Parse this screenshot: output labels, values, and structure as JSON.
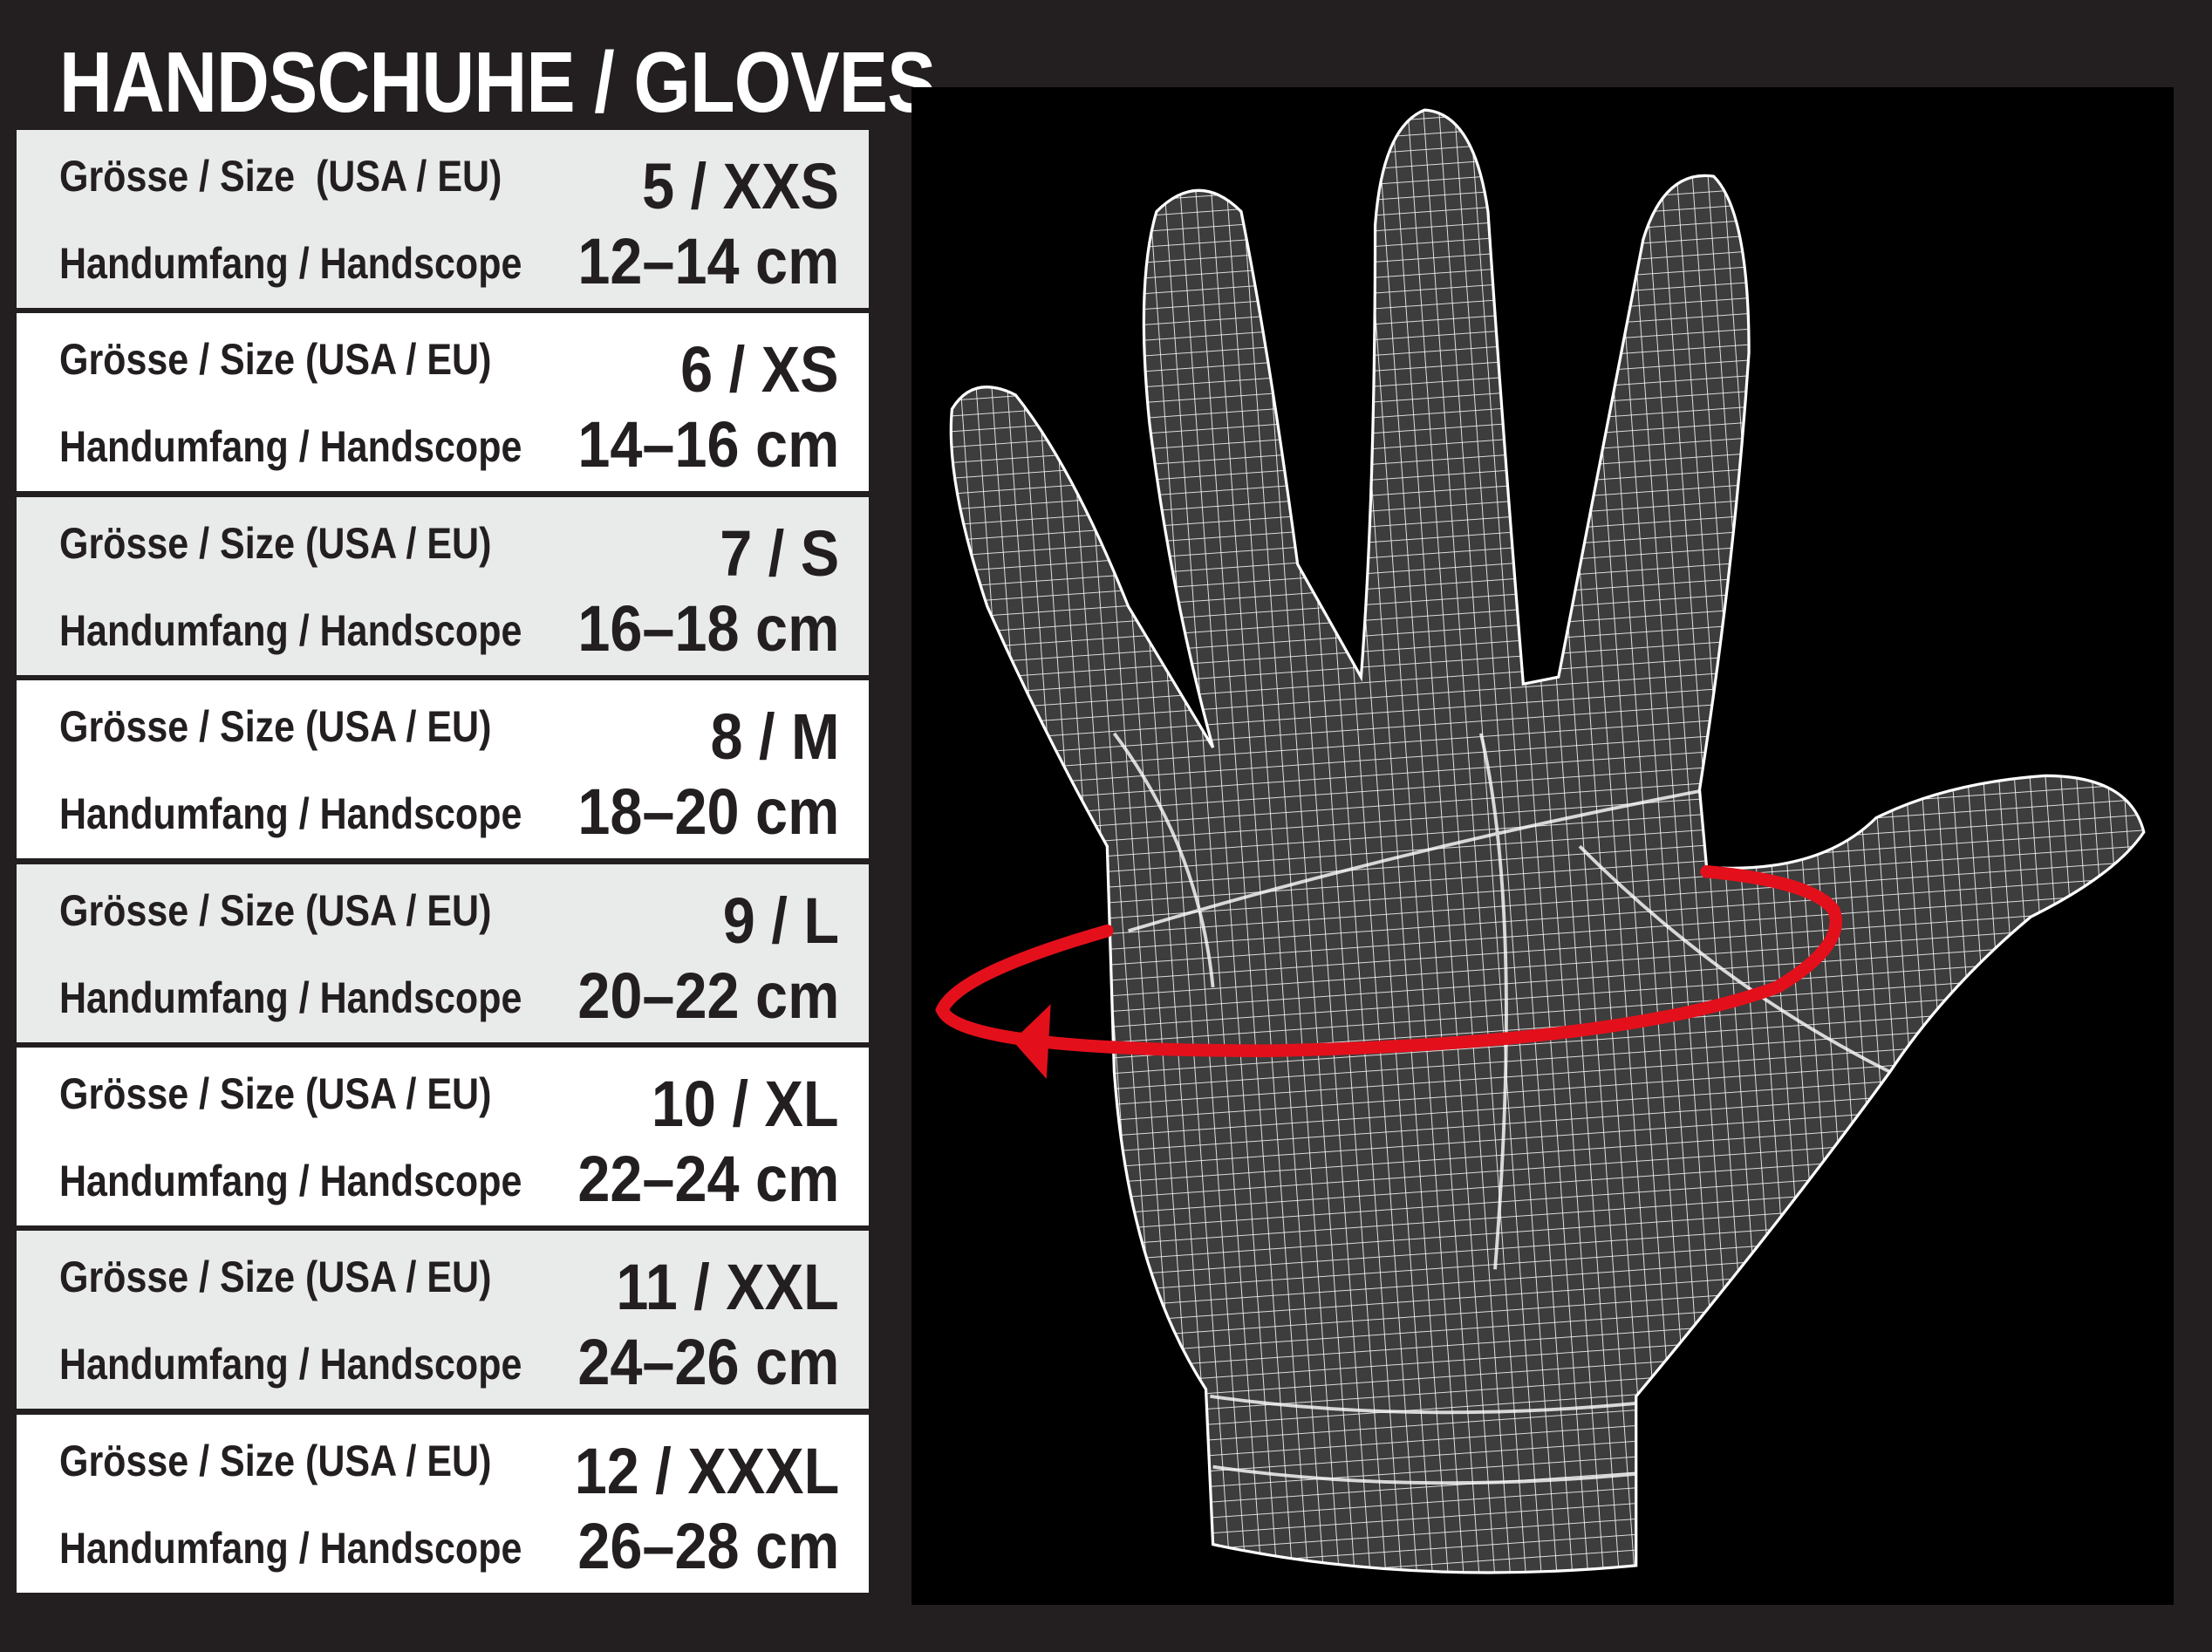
{
  "title": "HANDSCHUHE / GLOVES",
  "rows": [
    {
      "size_label": "Grösse / Size  (USA / EU)",
      "size": "5 / XXS",
      "range_label": "Handumfang / Handscope",
      "range": "12–14 cm"
    },
    {
      "size_label": "Grösse / Size (USA / EU)",
      "size": "6 / XS",
      "range_label": "Handumfang / Handscope",
      "range": "14–16 cm"
    },
    {
      "size_label": "Grösse / Size (USA / EU)",
      "size": "7 / S",
      "range_label": "Handumfang / Handscope",
      "range": "16–18 cm"
    },
    {
      "size_label": "Grösse / Size (USA / EU)",
      "size": "8 / M",
      "range_label": "Handumfang / Handscope",
      "range": "18–20 cm"
    },
    {
      "size_label": "Grösse / Size (USA / EU)",
      "size": "9 / L",
      "range_label": "Handumfang / Handscope",
      "range": "20–22 cm"
    },
    {
      "size_label": "Grösse / Size (USA / EU)",
      "size": "10 / XL",
      "range_label": "Handumfang / Handscope",
      "range": "22–24 cm"
    },
    {
      "size_label": "Grösse / Size (USA / EU)",
      "size": "11 / XXL",
      "range_label": "Handumfang / Handscope",
      "range": "24–26 cm"
    },
    {
      "size_label": "Grösse / Size (USA / EU)",
      "size": "12 / XXXL",
      "range_label": "Handumfang / Handscope",
      "range": "26–28 cm"
    }
  ],
  "colors": {
    "background": "#231f20",
    "row_gray": "#e9eaea",
    "row_white": "#ffffff",
    "measure_arrow": "#e3101b",
    "panel": "#000000"
  },
  "illustration": {
    "icon": "wireframe-hand-icon",
    "measure": "circumference-arrow-icon"
  }
}
